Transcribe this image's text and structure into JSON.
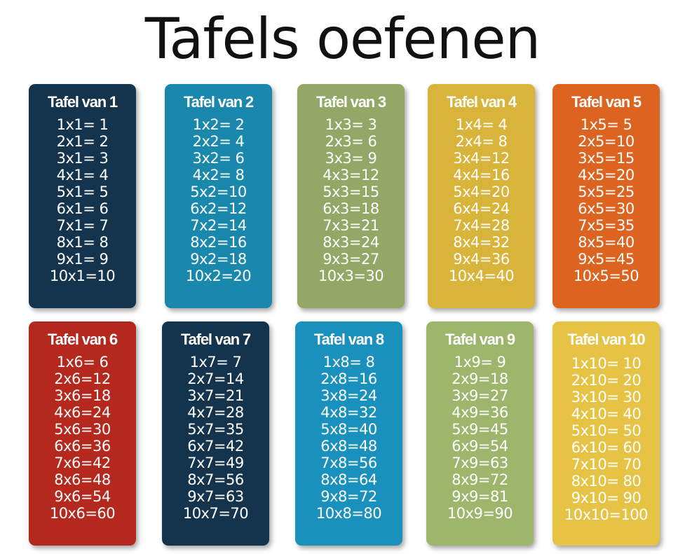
{
  "title": "Tafels oefenen",
  "cards": [
    {
      "title": "Tafel van 1",
      "color": "#13344c",
      "rows": [
        "1x1= 1",
        "2x1= 2",
        "3x1= 3",
        "4x1= 4",
        "5x1= 5",
        "6x1= 6",
        "7x1= 7",
        "8x1= 8",
        "9x1= 9",
        "10x1=10"
      ]
    },
    {
      "title": "Tafel van 2",
      "color": "#1a88ac",
      "rows": [
        "1x2= 2",
        "2x2= 4",
        "3x2= 6",
        "4x2= 8",
        "5x2=10",
        "6x2=12",
        "7x2=14",
        "8x2=16",
        "9x2=18",
        "10x2=20"
      ]
    },
    {
      "title": "Tafel van 3",
      "color": "#93a866",
      "rows": [
        "1x3= 3",
        "2x3= 6",
        "3x3= 9",
        "4x3=12",
        "5x3=15",
        "6x3=18",
        "7x3=21",
        "8x3=24",
        "9x3=27",
        "10x3=30"
      ]
    },
    {
      "title": "Tafel van 4",
      "color": "#d8b43a",
      "rows": [
        "1x4= 4",
        "2x4= 8",
        "3x4=12",
        "4x4=16",
        "5x4=20",
        "6x4=24",
        "7x4=28",
        "8x4=32",
        "9x4=36",
        "10x4=40"
      ]
    },
    {
      "title": "Tafel van 5",
      "color": "#dc6320",
      "rows": [
        "1x5= 5",
        "2x5=10",
        "3x5=15",
        "4x5=20",
        "5x5=25",
        "6x5=30",
        "7x5=35",
        "8x5=40",
        "9x5=45",
        "10x5=50"
      ]
    },
    {
      "title": "Tafel van 6",
      "color": "#b5281d",
      "rows": [
        "1x6= 6",
        "2x6=12",
        "3x6=18",
        "4x6=24",
        "5x6=30",
        "6x6=36",
        "7x6=42",
        "8x6=48",
        "9x6=54",
        "10x6=60"
      ]
    },
    {
      "title": "Tafel van 7",
      "color": "#13344c",
      "rows": [
        "1x7= 7",
        "2x7=14",
        "3x7=21",
        "4x7=28",
        "5x7=35",
        "6x7=42",
        "7x7=49",
        "8x7=56",
        "9x7=63",
        "10x7=70"
      ]
    },
    {
      "title": "Tafel van 8",
      "color": "#1a91bd",
      "rows": [
        "1x8= 8",
        "2x8=16",
        "3x8=24",
        "4x8=32",
        "5x8=40",
        "6x8=48",
        "7x8=56",
        "8x8=64",
        "9x8=72",
        "10x8=80"
      ]
    },
    {
      "title": "Tafel van 9",
      "color": "#9db66c",
      "rows": [
        "1x9= 9",
        "2x9=18",
        "3x9=27",
        "4x9=36",
        "5x9=45",
        "6x9=54",
        "7x9=63",
        "8x9=72",
        "9x9=81",
        "10x9=90"
      ]
    },
    {
      "title": "Tafel van 10",
      "color": "#e6c344",
      "rows": [
        "1x10= 10",
        "2x10= 20",
        "3x10= 30",
        "4x10= 40",
        "5x10= 50",
        "6x10= 60",
        "7x10= 70",
        "8x10= 80",
        "9x10= 90",
        "10x10=100"
      ]
    }
  ]
}
